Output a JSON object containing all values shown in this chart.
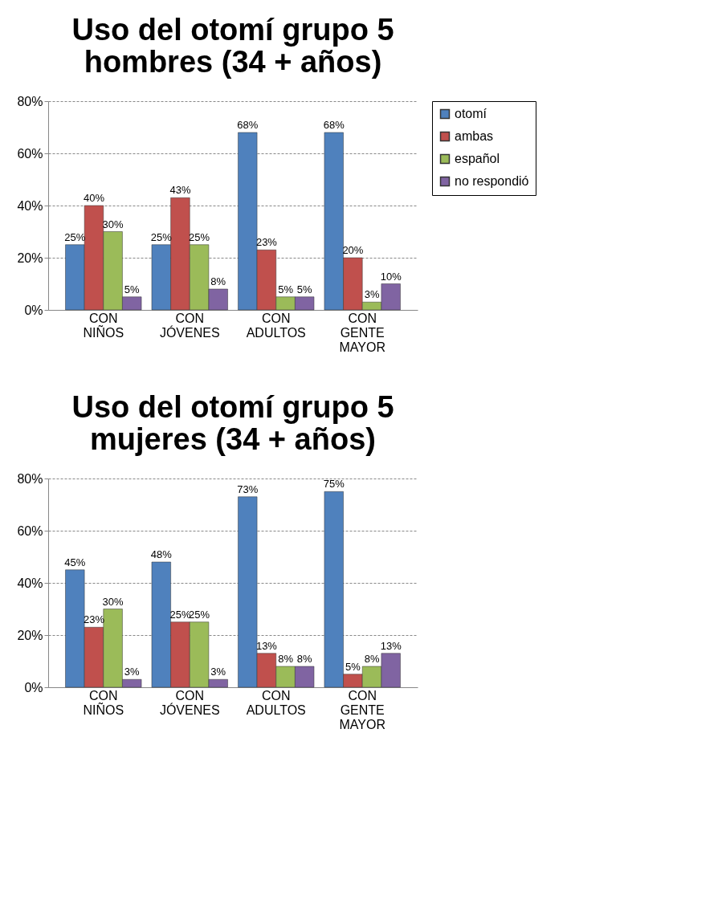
{
  "chart_data": [
    {
      "type": "bar",
      "title": [
        "Uso del otomí grupo 5",
        "hombres (34 + años)"
      ],
      "categories": [
        "CON\nNIÑOS",
        "CON\nJÓVENES",
        "CON\nADULTOS",
        "CON\nGENTE\nMAYOR"
      ],
      "ylim": [
        0,
        80
      ],
      "yticks": [
        {
          "value": 0,
          "label": "0%"
        },
        {
          "value": 20,
          "label": "20%"
        },
        {
          "value": 40,
          "label": "40%"
        },
        {
          "value": 60,
          "label": "60%"
        },
        {
          "value": 80,
          "label": "80%"
        }
      ],
      "grid": "y",
      "legend": "right",
      "series": [
        {
          "name": "otomí",
          "color": "#4f81bd",
          "values": [
            25,
            25,
            68,
            68
          ],
          "value_labels": [
            "25%",
            "25%",
            "68%",
            "68%"
          ]
        },
        {
          "name": "ambas",
          "color": "#c0504d",
          "values": [
            40,
            43,
            23,
            20
          ],
          "value_labels": [
            "40%",
            "43%",
            "23%",
            "20%"
          ]
        },
        {
          "name": "español",
          "color": "#9bbb59",
          "values": [
            30,
            25,
            5,
            3
          ],
          "value_labels": [
            "30%",
            "25%",
            "5%",
            "3%"
          ]
        },
        {
          "name": "no respondió",
          "color": "#8064a2",
          "values": [
            5,
            8,
            5,
            10
          ],
          "value_labels": [
            "5%",
            "8%",
            "5%",
            "10%"
          ]
        }
      ]
    },
    {
      "type": "bar",
      "title": [
        "Uso del otomí grupo 5",
        "mujeres (34 + años)"
      ],
      "categories": [
        "CON\nNIÑOS",
        "CON\nJÓVENES",
        "CON\nADULTOS",
        "CON\nGENTE\nMAYOR"
      ],
      "ylim": [
        0,
        80
      ],
      "yticks": [
        {
          "value": 0,
          "label": "0%"
        },
        {
          "value": 20,
          "label": "20%"
        },
        {
          "value": 40,
          "label": "40%"
        },
        {
          "value": 60,
          "label": "60%"
        },
        {
          "value": 80,
          "label": "80%"
        }
      ],
      "grid": "y",
      "legend": "right",
      "series": [
        {
          "name": "otomí",
          "color": "#4f81bd",
          "values": [
            45,
            48,
            73,
            75
          ],
          "value_labels": [
            "45%",
            "48%",
            "73%",
            "75%"
          ]
        },
        {
          "name": "ambas",
          "color": "#c0504d",
          "values": [
            23,
            25,
            13,
            5
          ],
          "value_labels": [
            "23%",
            "25%",
            "13%",
            "5%"
          ]
        },
        {
          "name": "español",
          "color": "#9bbb59",
          "values": [
            30,
            25,
            8,
            8
          ],
          "value_labels": [
            "30%",
            "25%",
            "8%",
            "8%"
          ]
        },
        {
          "name": "no respondió",
          "color": "#8064a2",
          "values": [
            3,
            3,
            8,
            13
          ],
          "value_labels": [
            "3%",
            "3%",
            "8%",
            "13%"
          ]
        }
      ]
    }
  ]
}
